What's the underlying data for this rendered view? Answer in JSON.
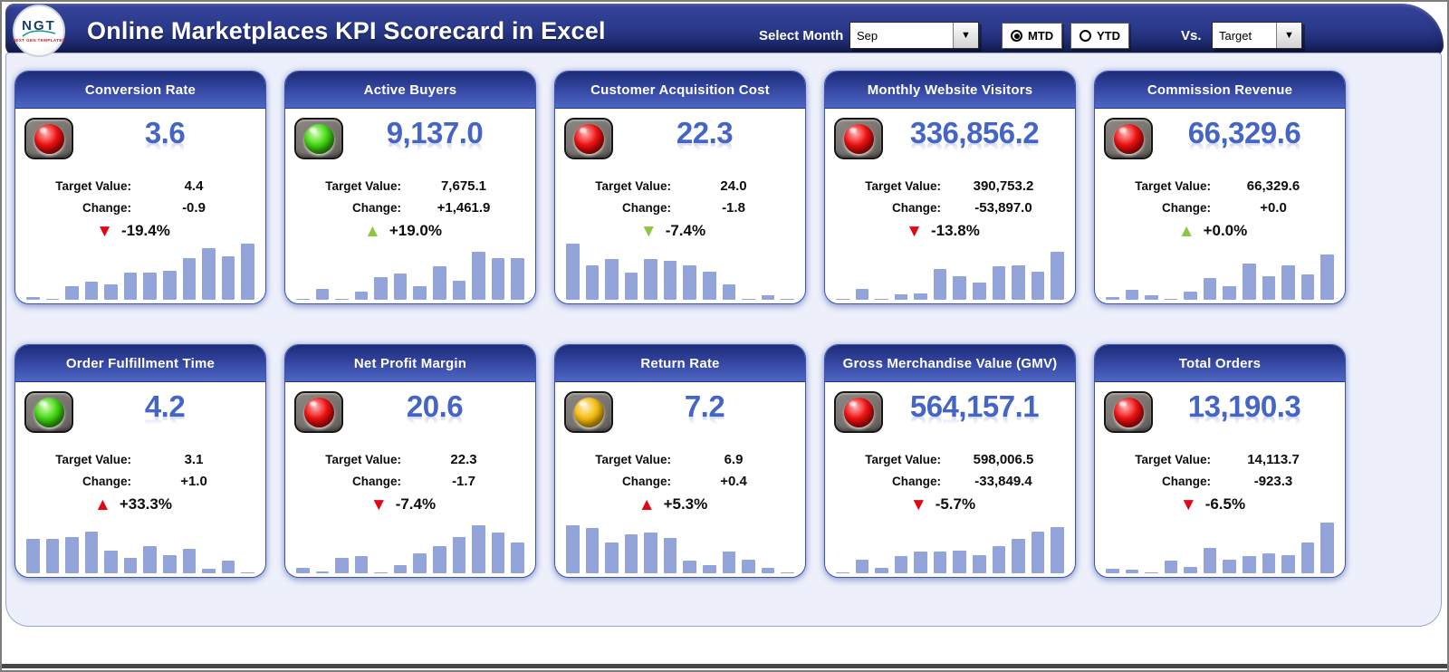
{
  "header": {
    "logo_text": "NGT",
    "logo_subtext": "NEXT GEN TEMPLATES",
    "title": "Online Marketplaces KPI Scorecard in Excel",
    "select_month_label": "Select Month",
    "month_value": "Sep",
    "period_options": [
      {
        "label": "MTD",
        "selected": true
      },
      {
        "label": "YTD",
        "selected": false
      }
    ],
    "vs_label": "Vs.",
    "vs_value": "Target"
  },
  "labels": {
    "target": "Target Value:",
    "change": "Change:"
  },
  "colors": {
    "header_navy": "#2b3a8c",
    "card_header_blue": "#30419b",
    "kpi_value_blue": "#4465c5",
    "spark_bar": "#92a4d9",
    "arrow_red": "#e30613",
    "arrow_green": "#8dc63f",
    "light_red": "#ee1111",
    "light_green": "#44d614",
    "light_yellow": "#f3bb10",
    "panel_bg": "#edf0fa"
  },
  "cards": [
    {
      "title": "Conversion Rate",
      "status": "red",
      "value": "3.6",
      "target": "4.4",
      "change": "-0.9",
      "pct": "-19.4%",
      "arrow": "down",
      "arrow_color": "red",
      "spark": [
        5,
        2,
        25,
        33,
        27,
        48,
        48,
        52,
        75,
        92,
        78,
        100
      ]
    },
    {
      "title": "Active Buyers",
      "status": "green",
      "value": "9,137.0",
      "target": "7,675.1",
      "change": "+1,461.9",
      "pct": "+19.0%",
      "arrow": "up",
      "arrow_color": "green",
      "spark": [
        2,
        20,
        2,
        14,
        40,
        46,
        24,
        60,
        34,
        85,
        75,
        74
      ]
    },
    {
      "title": "Customer Acquisition Cost",
      "status": "red",
      "value": "22.3",
      "target": "24.0",
      "change": "-1.8",
      "pct": "-7.4%",
      "arrow": "down",
      "arrow_color": "green",
      "spark": [
        100,
        62,
        72,
        48,
        73,
        70,
        62,
        50,
        27,
        2,
        8,
        2
      ]
    },
    {
      "title": "Monthly Website Visitors",
      "status": "red",
      "value": "336,856.2",
      "target": "390,753.2",
      "change": "-53,897.0",
      "pct": "-13.8%",
      "arrow": "down",
      "arrow_color": "red",
      "spark": [
        2,
        20,
        2,
        9,
        12,
        55,
        42,
        30,
        60,
        62,
        50,
        85
      ]
    },
    {
      "title": "Commission Revenue",
      "status": "red",
      "value": "66,329.6",
      "target": "66,329.6",
      "change": "+0.0",
      "pct": "+0.0%",
      "arrow": "up",
      "arrow_color": "green",
      "spark": [
        5,
        18,
        8,
        2,
        14,
        38,
        25,
        65,
        42,
        62,
        45,
        80
      ]
    },
    {
      "title": "Order Fulfillment Time",
      "status": "green",
      "value": "4.2",
      "target": "3.1",
      "change": "+1.0",
      "pct": "+33.3%",
      "arrow": "up",
      "arrow_color": "red",
      "spark": [
        62,
        62,
        65,
        75,
        40,
        28,
        48,
        33,
        43,
        8,
        22,
        2
      ]
    },
    {
      "title": "Net Profit Margin",
      "status": "red",
      "value": "20.6",
      "target": "22.3",
      "change": "-1.7",
      "pct": "-7.4%",
      "arrow": "down",
      "arrow_color": "red",
      "spark": [
        10,
        4,
        28,
        30,
        2,
        15,
        35,
        48,
        65,
        85,
        72,
        55
      ]
    },
    {
      "title": "Return Rate",
      "status": "yellow",
      "value": "7.2",
      "target": "6.9",
      "change": "+0.4",
      "pct": "+5.3%",
      "arrow": "up",
      "arrow_color": "red",
      "spark": [
        85,
        80,
        55,
        70,
        73,
        63,
        22,
        15,
        38,
        25,
        10,
        2
      ]
    },
    {
      "title": "Gross Merchandise Value (GMV)",
      "status": "red",
      "value": "564,157.1",
      "target": "598,006.5",
      "change": "-33,849.4",
      "pct": "-5.7%",
      "arrow": "down",
      "arrow_color": "red",
      "spark": [
        2,
        25,
        10,
        30,
        38,
        38,
        40,
        33,
        48,
        62,
        75,
        82
      ]
    },
    {
      "title": "Total Orders",
      "status": "red",
      "value": "13,190.3",
      "target": "14,113.7",
      "change": "-923.3",
      "pct": "-6.5%",
      "arrow": "down",
      "arrow_color": "red",
      "spark": [
        8,
        7,
        2,
        22,
        12,
        45,
        25,
        30,
        35,
        33,
        55,
        90
      ]
    }
  ],
  "chart_data": {
    "type": "bar",
    "note": "Each KPI card contains a 12-point monthly trend sparkline; values are relative heights 0-100 stored in cards[].spark"
  }
}
